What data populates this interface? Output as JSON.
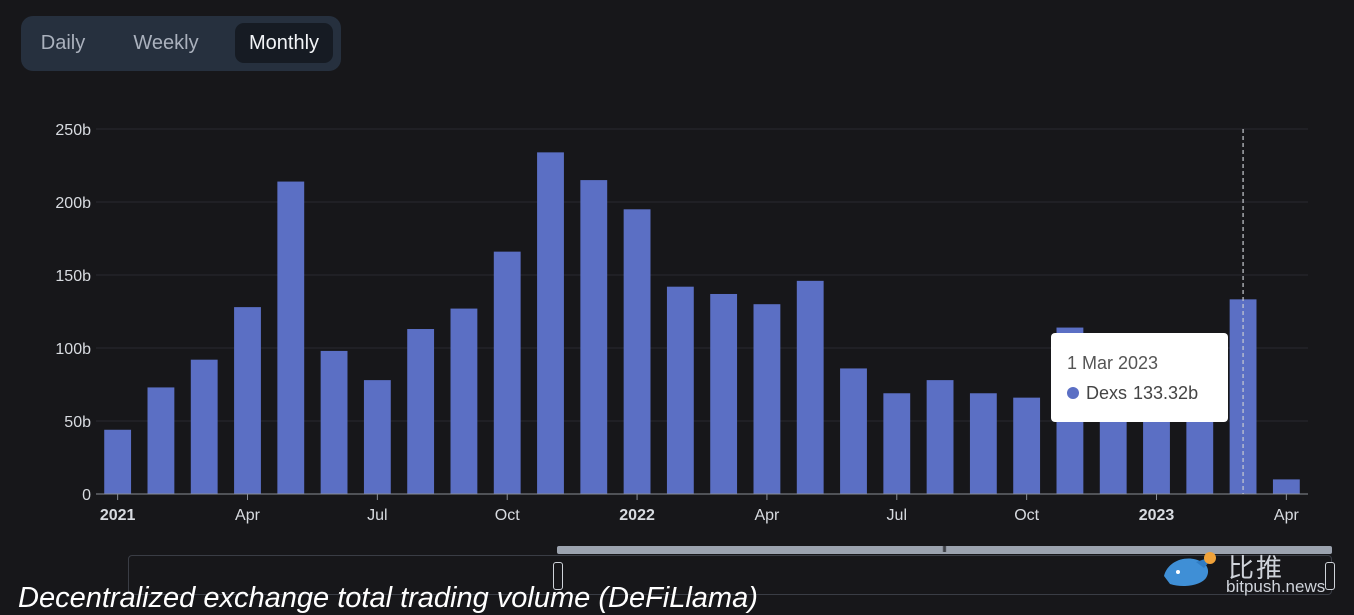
{
  "tabs": [
    {
      "label": "Daily",
      "active": false
    },
    {
      "label": "Weekly",
      "active": false
    },
    {
      "label": "Monthly",
      "active": true
    }
  ],
  "colors": {
    "bar": "#5b6fc4",
    "background": "#17171a",
    "grid": "#2a2a30",
    "axis_text": "#d8dbe0"
  },
  "chart_data": {
    "type": "bar",
    "x": [
      "2021-01",
      "2021-02",
      "2021-03",
      "2021-04",
      "2021-05",
      "2021-06",
      "2021-07",
      "2021-08",
      "2021-09",
      "2021-10",
      "2021-11",
      "2021-12",
      "2022-01",
      "2022-02",
      "2022-03",
      "2022-04",
      "2022-05",
      "2022-06",
      "2022-07",
      "2022-08",
      "2022-09",
      "2022-10",
      "2022-11",
      "2022-12",
      "2023-01",
      "2023-02",
      "2023-03",
      "2023-04"
    ],
    "series": [
      {
        "name": "Dexs",
        "values": [
          44,
          73,
          92,
          128,
          214,
          98,
          78,
          113,
          127,
          166,
          234,
          215,
          195,
          142,
          137,
          130,
          146,
          86,
          69,
          78,
          69,
          66,
          114,
          90,
          82,
          95,
          133.32,
          10
        ]
      }
    ],
    "ylim": [
      0,
      250
    ],
    "y_ticks": [
      "0",
      "50b",
      "100b",
      "150b",
      "200b",
      "250b"
    ],
    "y_tick_values": [
      0,
      50,
      100,
      150,
      200,
      250
    ],
    "x_ticks": [
      {
        "label": "2021",
        "x": "2021-01",
        "bold": true
      },
      {
        "label": "Apr",
        "x": "2021-04",
        "bold": false
      },
      {
        "label": "Jul",
        "x": "2021-07",
        "bold": false
      },
      {
        "label": "Oct",
        "x": "2021-10",
        "bold": false
      },
      {
        "label": "2022",
        "x": "2022-01",
        "bold": true
      },
      {
        "label": "Apr",
        "x": "2022-04",
        "bold": false
      },
      {
        "label": "Jul",
        "x": "2022-07",
        "bold": false
      },
      {
        "label": "Oct",
        "x": "2022-10",
        "bold": false
      },
      {
        "label": "2023",
        "x": "2023-01",
        "bold": true
      },
      {
        "label": "Apr",
        "x": "2023-04",
        "bold": false
      }
    ],
    "grid": true,
    "hover_x": "2023-03"
  },
  "tooltip": {
    "date": "1 Mar 2023",
    "series": "Dexs",
    "value": "133.32b"
  },
  "slider": {
    "grip": "III"
  },
  "caption": "Decentralized exchange total trading volume (DeFiLlama)",
  "watermark": {
    "text": "比推",
    "url": "bitpush.news"
  }
}
